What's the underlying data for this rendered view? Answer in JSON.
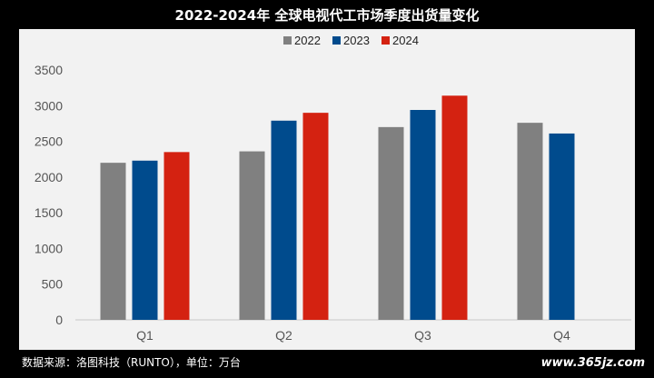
{
  "title": "2022-2024年 全球电视代工市场季度出货量变化",
  "source_note": "数据来源：洛图科技（RUNTO），单位：万台",
  "watermark_site": "www.365jz.com",
  "colors": {
    "2022": "#808080",
    "2023": "#004b8d",
    "2024": "#d42211"
  },
  "chart_data": {
    "type": "bar",
    "title": "2022-2024年 全球电视代工市场季度出货量变化",
    "categories": [
      "Q1",
      "Q2",
      "Q3",
      "Q4"
    ],
    "series": [
      {
        "name": "2022",
        "values": [
          2200,
          2360,
          2700,
          2760
        ]
      },
      {
        "name": "2023",
        "values": [
          2230,
          2790,
          2940,
          2610
        ]
      },
      {
        "name": "2024",
        "values": [
          2350,
          2900,
          3140,
          null
        ]
      }
    ],
    "ylim": [
      0,
      3500
    ],
    "yticks": [
      0,
      500,
      1000,
      1500,
      2000,
      2500,
      3000,
      3500
    ],
    "ytick_labels": [
      "0",
      "500",
      "1000",
      "1500",
      "2000",
      "2500",
      "3000",
      "3500"
    ],
    "legend_position": "top",
    "grid": false,
    "xlabel": "",
    "ylabel": ""
  }
}
